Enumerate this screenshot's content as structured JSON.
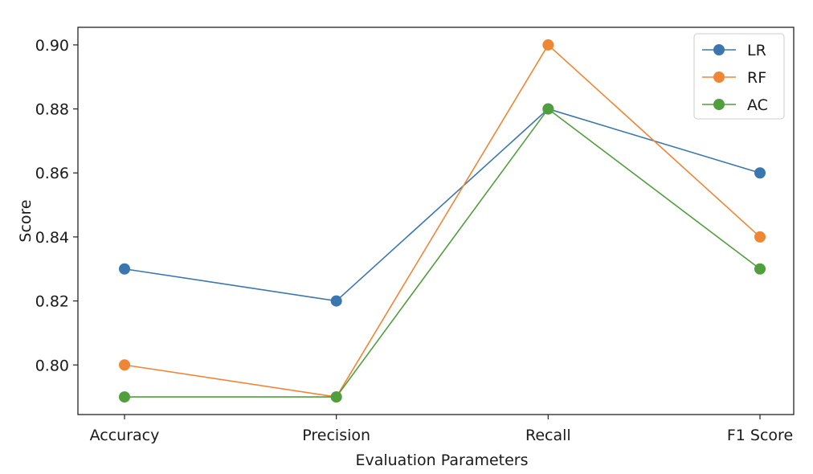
{
  "chart_data": {
    "type": "line",
    "categories": [
      "Accuracy",
      "Precision",
      "Recall",
      "F1 Score"
    ],
    "series": [
      {
        "name": "LR",
        "color": "#3b76af",
        "values": [
          0.83,
          0.82,
          0.88,
          0.86
        ]
      },
      {
        "name": "RF",
        "color": "#ef8636",
        "values": [
          0.8,
          0.79,
          0.9,
          0.84
        ]
      },
      {
        "name": "AC",
        "color": "#519e3e",
        "values": [
          0.79,
          0.79,
          0.88,
          0.83
        ]
      }
    ],
    "title": "",
    "xlabel": "Evaluation Parameters",
    "ylabel": "Score",
    "ylim": [
      0.7845,
      0.9055
    ],
    "yticks": [
      0.8,
      0.82,
      0.84,
      0.86,
      0.88,
      0.9
    ],
    "ytick_labels": [
      "0.80",
      "0.82",
      "0.84",
      "0.86",
      "0.88",
      "0.90"
    ],
    "grid": false,
    "legend_position": "top-right"
  }
}
